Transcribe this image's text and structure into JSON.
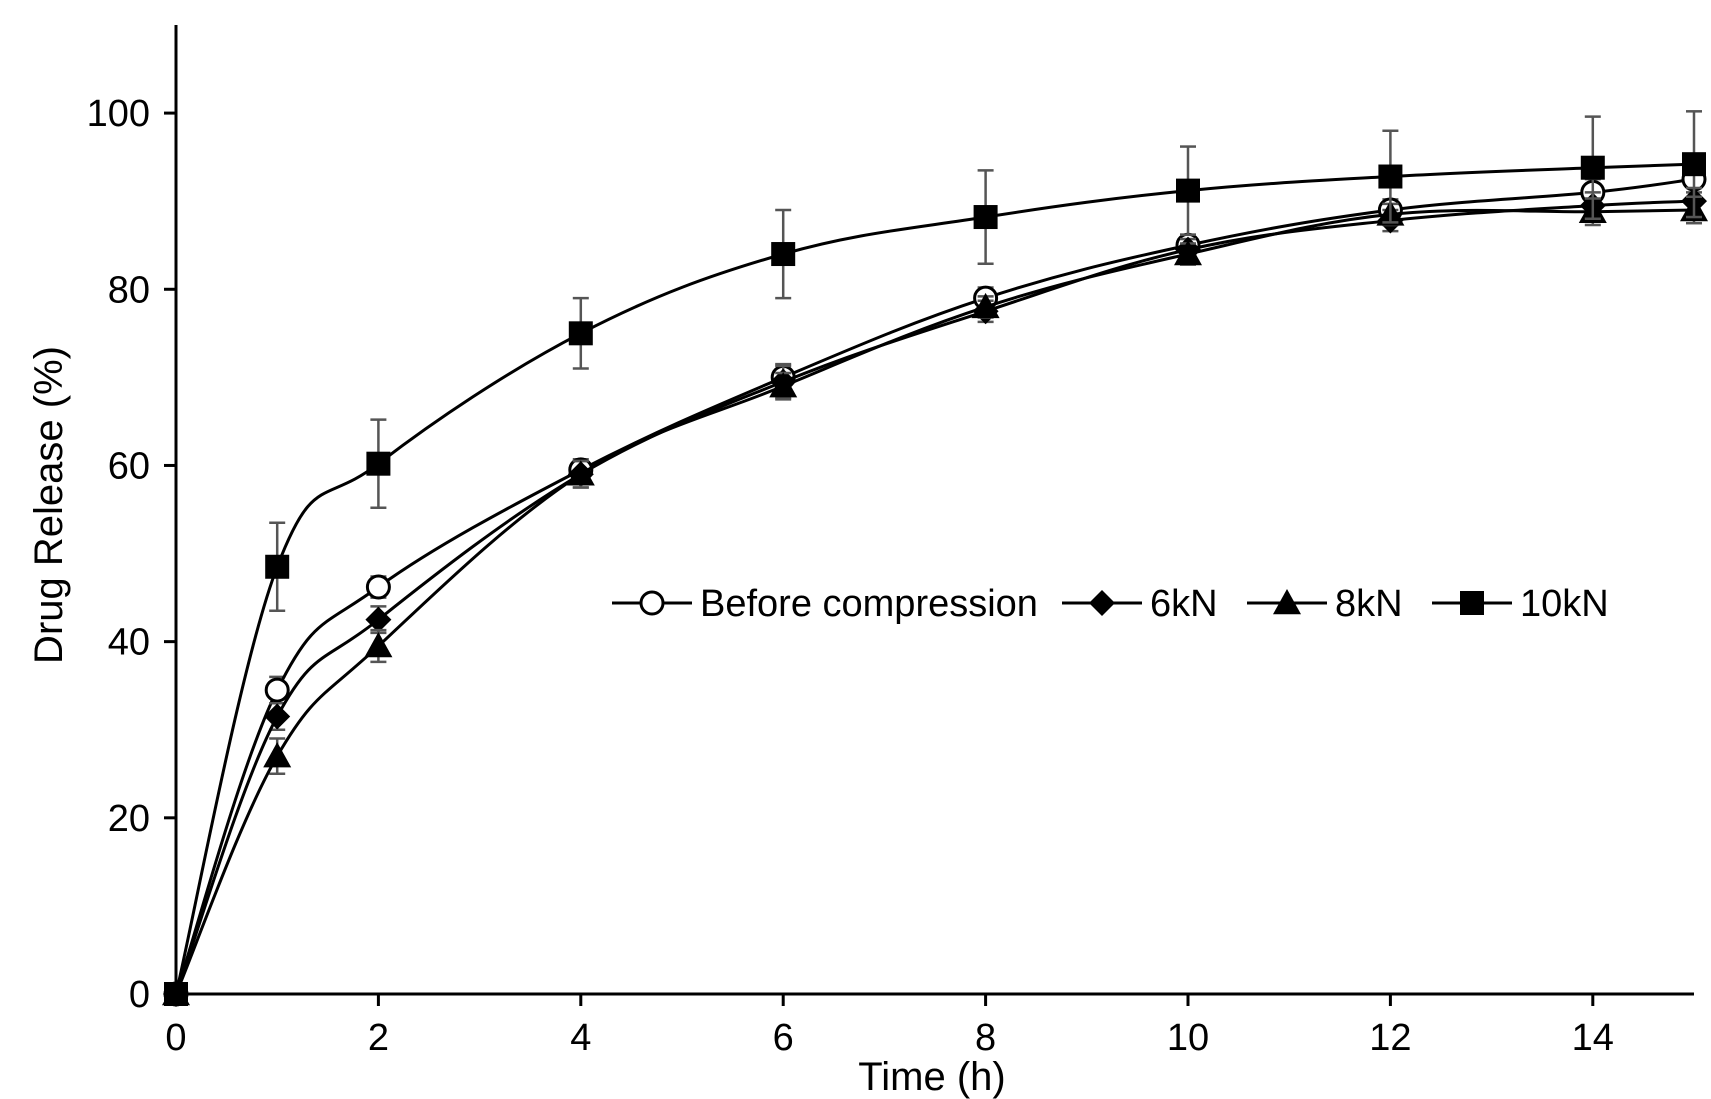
{
  "chart_data": {
    "type": "line",
    "title": "",
    "xlabel": "Time (h)",
    "ylabel": "Drug Release (%)",
    "xlim": [
      0,
      15
    ],
    "ylim": [
      0,
      110
    ],
    "xticks": [
      0,
      2,
      4,
      6,
      8,
      10,
      12,
      14
    ],
    "yticks": [
      0,
      20,
      40,
      60,
      80,
      100
    ],
    "grid": false,
    "legend_position": "center-right",
    "x": [
      0,
      1,
      2,
      4,
      6,
      8,
      10,
      12,
      14,
      15
    ],
    "series": [
      {
        "name": "Before compression",
        "marker": "open-circle",
        "color": "#000000",
        "values": [
          0,
          34.5,
          46.2,
          59.5,
          70.0,
          79.0,
          85.0,
          89.0,
          91.0,
          92.5
        ],
        "errors": [
          0,
          1.5,
          1.2,
          1.2,
          1.5,
          1.2,
          1.2,
          1.2,
          1.5,
          1.5
        ]
      },
      {
        "name": "6kN",
        "marker": "filled-diamond",
        "color": "#000000",
        "values": [
          0,
          31.5,
          42.5,
          59.0,
          69.5,
          77.5,
          84.5,
          87.8,
          89.5,
          90.0
        ],
        "errors": [
          0,
          1.5,
          1.5,
          1.5,
          1.8,
          1.2,
          1.2,
          1.2,
          1.5,
          1.5
        ]
      },
      {
        "name": "8kN",
        "marker": "filled-triangle",
        "color": "#000000",
        "values": [
          0,
          27.0,
          39.5,
          59.0,
          69.0,
          78.0,
          84.0,
          88.5,
          88.8,
          89.0
        ],
        "errors": [
          0,
          2.0,
          1.8,
          1.5,
          1.5,
          1.2,
          1.2,
          1.2,
          1.5,
          1.5
        ]
      },
      {
        "name": "10kN",
        "marker": "filled-square",
        "color": "#000000",
        "values": [
          0,
          48.5,
          60.2,
          75.0,
          84.0,
          88.2,
          91.2,
          92.8,
          93.8,
          94.2
        ],
        "errors": [
          0,
          5.0,
          5.0,
          4.0,
          5.0,
          5.3,
          5.0,
          5.2,
          5.8,
          6.0
        ]
      }
    ]
  }
}
